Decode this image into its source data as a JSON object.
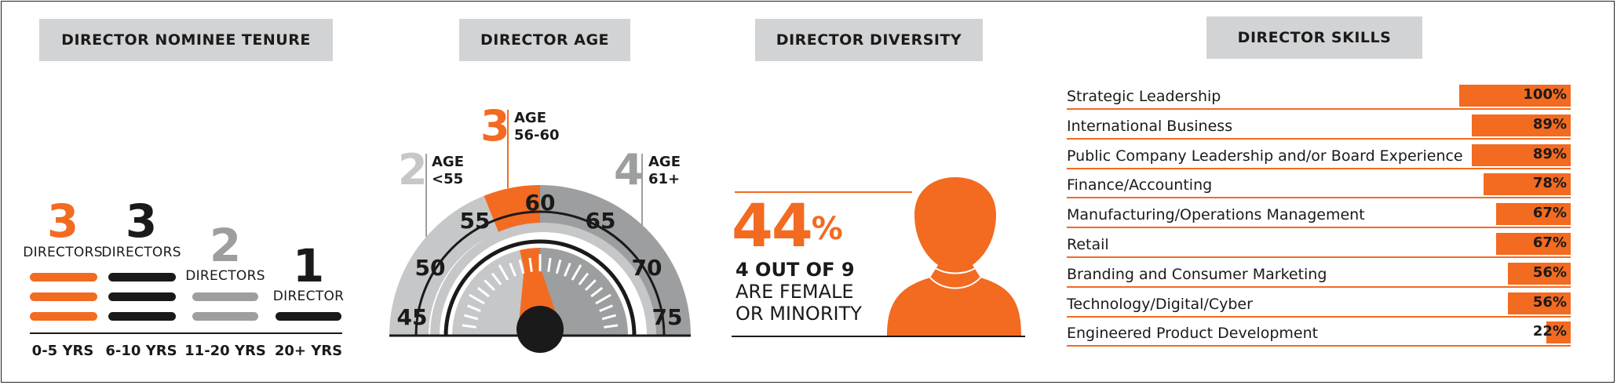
{
  "colors": {
    "orange": "#f26b21",
    "black": "#1a1a1a",
    "gray": "#9d9e9f",
    "light_gray": "#c6c7c8",
    "header_bg": "#d2d3d5"
  },
  "headers": {
    "tenure": "DIRECTOR NOMINEE TENURE",
    "age": "DIRECTOR AGE",
    "diversity": "DIRECTOR DIVERSITY",
    "skills": "DIRECTOR SKILLS"
  },
  "tenure": [
    {
      "count": "3",
      "label": "DIRECTORS",
      "range": "0-5 YRS",
      "color": "orange"
    },
    {
      "count": "3",
      "label": "DIRECTORS",
      "range": "6-10 YRS",
      "color": "black"
    },
    {
      "count": "2",
      "label": "DIRECTORS",
      "range": "11-20 YRS",
      "color": "gray"
    },
    {
      "count": "1",
      "label": "DIRECTOR",
      "range": "20+ YRS",
      "color": "black"
    }
  ],
  "age": {
    "groups": [
      {
        "count": "2",
        "line1": "AGE",
        "line2": "<55"
      },
      {
        "count": "3",
        "line1": "AGE",
        "line2": "56-60"
      },
      {
        "count": "4",
        "line1": "AGE",
        "line2": "61+"
      }
    ],
    "ticks": [
      "45",
      "50",
      "55",
      "60",
      "65",
      "70",
      "75"
    ]
  },
  "diversity": {
    "percent": "44",
    "percent_sign": "%",
    "line1": "4 OUT OF 9",
    "line2": "ARE FEMALE",
    "line3": "OR MINORITY"
  },
  "chart_data": {
    "type": "bar",
    "title": "DIRECTOR SKILLS",
    "categories": [
      "Strategic Leadership",
      "International Business",
      "Public Company Leadership and/or Board Experience",
      "Finance/Accounting",
      "Manufacturing/Operations Management",
      "Retail",
      "Branding and Consumer Marketing",
      "Technology/Digital/Cyber",
      "Engineered Product Development"
    ],
    "values": [
      100,
      89,
      89,
      78,
      67,
      67,
      56,
      56,
      22
    ],
    "labels": [
      "100%",
      "89%",
      "89%",
      "78%",
      "67%",
      "67%",
      "56%",
      "56%",
      "22%"
    ],
    "xlim": [
      0,
      100
    ]
  }
}
